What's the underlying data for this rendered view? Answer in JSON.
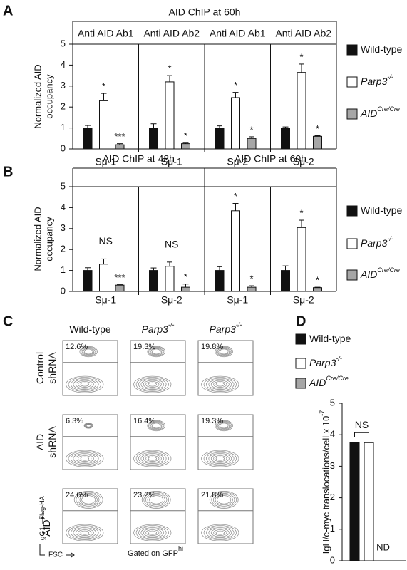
{
  "chart_data": [
    {
      "type": "bar",
      "panel": "A",
      "header_spans": [
        {
          "label": "AID ChIP at 60h",
          "span": 4
        }
      ],
      "group_labels": [
        "Anti AID Ab1",
        "Anti AID Ab2",
        "Anti AID Ab1",
        "Anti AID Ab2"
      ],
      "categories": [
        "Sμ-1",
        "Sμ-1",
        "Sμ-2",
        "Sμ-2"
      ],
      "y_label": [
        "Normalized AID",
        "occupancy"
      ],
      "ylim": [
        0,
        5
      ],
      "yticks": [
        0,
        1,
        2,
        3,
        4,
        5
      ],
      "series": [
        {
          "name": "Wild-type",
          "color": "#111111",
          "values": [
            1,
            1,
            1,
            1
          ],
          "errors": [
            0.12,
            0.2,
            0.1,
            0.05
          ]
        },
        {
          "name": "Parp3",
          "name_sup": "-/-",
          "name_style": "italic",
          "color": "#ffffff",
          "values": [
            2.3,
            3.2,
            2.45,
            3.65
          ],
          "errors": [
            0.35,
            0.3,
            0.25,
            0.4
          ],
          "annotations": [
            "*",
            "*",
            "*",
            "*"
          ]
        },
        {
          "name": "AID",
          "name_sup": "Cre/Cre",
          "name_style": "italic",
          "color": "#a6a6a6",
          "values": [
            0.2,
            0.25,
            0.5,
            0.6
          ],
          "errors": [
            0.05,
            0.03,
            0.08,
            0.03
          ],
          "annotations": [
            "***",
            "*",
            "*",
            "*"
          ]
        }
      ]
    },
    {
      "type": "bar",
      "panel": "B",
      "header_spans": [
        {
          "label": "AID ChIP at 48h",
          "span": 2
        },
        {
          "label": "AID ChIP at 60h",
          "span": 2
        }
      ],
      "categories": [
        "Sμ-1",
        "Sμ-2",
        "Sμ-1",
        "Sμ-2"
      ],
      "group_annotations": [
        "NS",
        "NS",
        null,
        null
      ],
      "y_label": [
        "Normalized AID",
        "occupancy"
      ],
      "ylim": [
        0,
        5
      ],
      "yticks": [
        0,
        1,
        2,
        3,
        4,
        5
      ],
      "series": [
        {
          "name": "Wild-type",
          "color": "#111111",
          "values": [
            1,
            1,
            1,
            1
          ],
          "errors": [
            0.13,
            0.12,
            0.18,
            0.22
          ]
        },
        {
          "name": "Parp3",
          "name_sup": "-/-",
          "name_style": "italic",
          "color": "#ffffff",
          "values": [
            1.3,
            1.2,
            3.85,
            3.05
          ],
          "errors": [
            0.25,
            0.2,
            0.35,
            0.35
          ],
          "annotations": [
            null,
            null,
            "*",
            "*"
          ]
        },
        {
          "name": "AID",
          "name_sup": "Cre/Cre",
          "name_style": "italic",
          "color": "#a6a6a6",
          "values": [
            0.3,
            0.2,
            0.2,
            0.18
          ],
          "errors": [
            0.02,
            0.15,
            0.07,
            0.02
          ],
          "annotations": [
            "***",
            "*",
            "*",
            "*"
          ]
        }
      ]
    },
    {
      "type": "bar",
      "panel": "D",
      "categories": [
        null
      ],
      "y_label": [
        "IgH/c-myc translocations/cell x 10"
      ],
      "y_label_sup": "-7",
      "ylim": [
        0,
        5
      ],
      "yticks": [
        0,
        1,
        2,
        3,
        4,
        5
      ],
      "bracket_label": "NS",
      "series": [
        {
          "name": "Wild-type",
          "color": "#111111",
          "values": [
            3.75
          ]
        },
        {
          "name": "Parp3",
          "name_sup": "-/-",
          "name_style": "italic",
          "color": "#ffffff",
          "values": [
            3.75
          ]
        },
        {
          "name": "AID",
          "name_sup": "Cre/Cre",
          "name_style": "italic",
          "color": "#a6a6a6",
          "values": [
            null
          ],
          "annotations": [
            "ND"
          ]
        }
      ]
    }
  ],
  "panel_c": {
    "panel": "C",
    "columns": [
      {
        "name": "Wild-type"
      },
      {
        "name": "Parp3",
        "name_sup": "-/-"
      },
      {
        "name": "Parp3",
        "name_sup": "-/-"
      }
    ],
    "rows": [
      {
        "lines": [
          "Control",
          "shRNA"
        ]
      },
      {
        "lines": [
          "AID",
          "shRNA"
        ]
      },
      {
        "lines": [
          "AID"
        ],
        "sup": "Flag-HA"
      }
    ],
    "percentages": [
      [
        "12.6%",
        "19.3%",
        "19.8%"
      ],
      [
        "6.3%",
        "16.4%",
        "19.3%"
      ],
      [
        "24.6%",
        "23.2%",
        "21.8%"
      ]
    ],
    "gate_label": "Gated on GFP",
    "gate_label_sup": "hi",
    "y_axis": "IgG1",
    "x_axis": "FSC"
  }
}
